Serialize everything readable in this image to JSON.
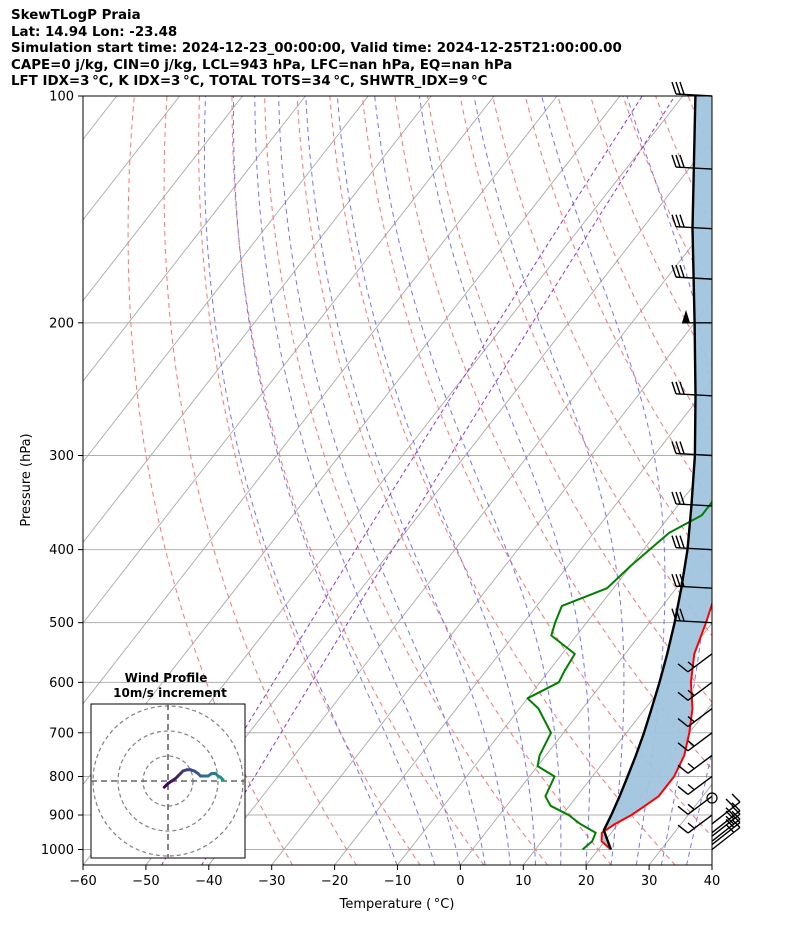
{
  "header": {
    "line1": "SkewTLogP Praia",
    "line2": "Lat: 14.94   Lon: -23.48",
    "line3": "Simulation start time: 2024-12-23_00:00:00, Valid time: 2024-12-25T21:00:00.00",
    "line4": "CAPE=0 j/kg, CIN=0 j/kg, LCL=943 hPa, LFC=nan hPa, EQ=nan hPa",
    "line5": "LFT IDX=3 °C, K IDX=3 °C, TOTAL TOTS=34 °C, SHWTR_IDX=9 °C"
  },
  "colors": {
    "temperature": "#ff0000",
    "dewpoint": "#008000",
    "parcel": "#000000",
    "shade": "#a0c4de",
    "dry_adiabat": "#ff6666",
    "moist_adiabat": "#6666ff",
    "isotherm": "#a9a9a9",
    "mixing_ratio": "#9933cc"
  },
  "chart_data": {
    "type": "line",
    "title": "SkewTLogP Praia",
    "xlabel": "Temperature ( °C)",
    "ylabel": "Pressure (hPa)",
    "xlim": [
      -60,
      40
    ],
    "ylim": [
      1050,
      100
    ],
    "y_scale": "log",
    "x_ticks": [
      "−60",
      "−50",
      "−40",
      "−30",
      "−20",
      "−10",
      "0",
      "10",
      "20",
      "30",
      "40"
    ],
    "x_tick_values": [
      -60,
      -50,
      -40,
      -30,
      -20,
      -10,
      0,
      10,
      20,
      30,
      40
    ],
    "y_ticks": [
      "1000",
      "900",
      "800",
      "700",
      "600",
      "500",
      "400",
      "300",
      "200",
      "100"
    ],
    "y_tick_values": [
      1000,
      900,
      800,
      700,
      600,
      500,
      400,
      300,
      200,
      100
    ],
    "grid": true,
    "series": [
      {
        "key": "temperature",
        "points": [
          [
            1000,
            22.0
          ],
          [
            975,
            19.5
          ],
          [
            950,
            18.5
          ],
          [
            925,
            19.5
          ],
          [
            900,
            21.0
          ],
          [
            875,
            22.0
          ],
          [
            850,
            23.0
          ],
          [
            800,
            23.0
          ],
          [
            750,
            22.0
          ],
          [
            700,
            20.0
          ],
          [
            650,
            17.5
          ],
          [
            600,
            14.0
          ],
          [
            550,
            11.0
          ],
          [
            500,
            9.0
          ],
          [
            450,
            6.5
          ],
          [
            400,
            3.0
          ],
          [
            350,
            -1.0
          ],
          [
            300,
            -6.0
          ],
          [
            270,
            -9.0
          ],
          [
            250,
            -10.0
          ],
          [
            220,
            -13.0
          ],
          [
            200,
            -16.0
          ],
          [
            175,
            -19.0
          ],
          [
            150,
            -23.0
          ],
          [
            130,
            -27.0
          ],
          [
            120,
            -29.0
          ],
          [
            110,
            -32.0
          ],
          [
            100,
            -36.0
          ]
        ]
      },
      {
        "key": "dewpoint",
        "points": [
          [
            1000,
            17.5
          ],
          [
            975,
            18.0
          ],
          [
            950,
            17.5
          ],
          [
            925,
            14.0
          ],
          [
            900,
            11.0
          ],
          [
            875,
            7.0
          ],
          [
            850,
            5.0
          ],
          [
            800,
            4.0
          ],
          [
            775,
            0.0
          ],
          [
            750,
            -1.0
          ],
          [
            700,
            -2.0
          ],
          [
            650,
            -7.0
          ],
          [
            630,
            -10.0
          ],
          [
            600,
            -7.0
          ],
          [
            580,
            -7.5
          ],
          [
            550,
            -8.0
          ],
          [
            520,
            -14.0
          ],
          [
            500,
            -15.0
          ],
          [
            475,
            -16.0
          ],
          [
            450,
            -11.0
          ],
          [
            420,
            -10.0
          ],
          [
            380,
            -8.0
          ],
          [
            360,
            -5.0
          ],
          [
            330,
            -5.0
          ],
          [
            310,
            -6.0
          ],
          [
            295,
            -6.0
          ],
          [
            280,
            -10.0
          ],
          [
            260,
            -14.0
          ],
          [
            240,
            -18.0
          ],
          [
            220,
            -20.0
          ],
          [
            200,
            -22.0
          ],
          [
            185,
            -25.0
          ],
          [
            170,
            -29.0
          ],
          [
            150,
            -33.0
          ],
          [
            130,
            -38.0
          ],
          [
            115,
            -43.0
          ],
          [
            100,
            -48.0
          ]
        ]
      },
      {
        "key": "parcel",
        "points": [
          [
            1000,
            22.0
          ],
          [
            943,
            18.5
          ],
          [
            900,
            17.8
          ],
          [
            850,
            16.8
          ],
          [
            800,
            15.6
          ],
          [
            750,
            14.3
          ],
          [
            700,
            12.8
          ],
          [
            650,
            11.0
          ],
          [
            600,
            9.0
          ],
          [
            550,
            6.7
          ],
          [
            500,
            4.0
          ],
          [
            450,
            0.8
          ],
          [
            400,
            -3.0
          ],
          [
            350,
            -7.8
          ],
          [
            300,
            -13.5
          ],
          [
            250,
            -20.8
          ],
          [
            200,
            -30.0
          ],
          [
            150,
            -42.0
          ],
          [
            100,
            -58.0
          ]
        ]
      }
    ],
    "wind_barbs_levels": [
      1000,
      985,
      975,
      960,
      950,
      925,
      900,
      850,
      800,
      750,
      700,
      650,
      600,
      550,
      500,
      450,
      400,
      350,
      300,
      250,
      200,
      175,
      150,
      125,
      100
    ],
    "hodograph": {
      "title": "Wind Profile",
      "subtitle": "10m/s increment",
      "points": [
        [
          -1.5,
          -2.5
        ],
        [
          0,
          -1
        ],
        [
          1.5,
          0
        ],
        [
          3,
          1
        ],
        [
          4,
          2
        ],
        [
          5,
          3
        ],
        [
          6,
          4
        ],
        [
          7.5,
          4.5
        ],
        [
          9,
          4.5
        ],
        [
          10.5,
          4
        ],
        [
          12,
          3
        ],
        [
          13,
          2
        ],
        [
          14.5,
          2
        ],
        [
          16,
          2
        ],
        [
          17.5,
          3
        ],
        [
          19,
          3
        ],
        [
          20,
          2
        ],
        [
          21,
          1.5
        ],
        [
          22,
          0.5
        ]
      ]
    }
  }
}
